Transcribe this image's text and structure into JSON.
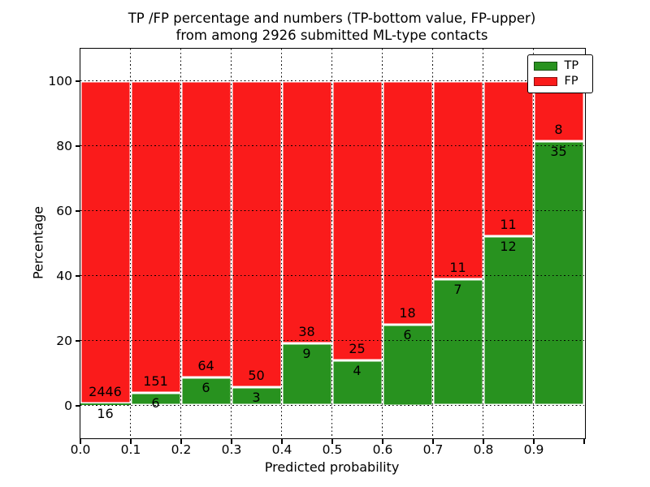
{
  "chart_data": {
    "type": "bar",
    "stacked": true,
    "title": "TP /FP percentage and numbers (TP-bottom value, FP-upper)",
    "subtitle": "from among 2926 submitted ML-type contacts",
    "xlabel": "Predicted probability",
    "ylabel": "Percentage",
    "total_contacts": 2926,
    "x_tick_labels": [
      "0.0",
      "0.1",
      "0.2",
      "0.3",
      "0.4",
      "0.5",
      "0.6",
      "0.7",
      "0.8",
      "0.9"
    ],
    "y_ticks": [
      0,
      20,
      40,
      60,
      80,
      100
    ],
    "y_tick_labels": [
      "0",
      "20",
      "40",
      "60",
      "80",
      "100"
    ],
    "xlim": [
      0.0,
      1.0
    ],
    "ylim": [
      -10,
      108.5
    ],
    "bin_width": 0.1,
    "grid": "dotted",
    "bar_normalization": "each bar stacked to 100%",
    "series": [
      {
        "name": "TP",
        "color": "#28921f",
        "position": "bottom",
        "counts": [
          16,
          6,
          6,
          3,
          9,
          4,
          6,
          7,
          12,
          35
        ],
        "pct_of_bin": [
          0.65,
          3.82,
          8.57,
          5.66,
          19.15,
          13.79,
          25.0,
          38.89,
          52.17,
          81.4
        ]
      },
      {
        "name": "FP",
        "color": "#fa1b1b",
        "position": "top",
        "counts": [
          2446,
          151,
          64,
          50,
          38,
          25,
          18,
          11,
          11,
          8
        ]
      }
    ],
    "legend": {
      "position": "upper right",
      "entries": [
        {
          "label": "TP",
          "color": "#28921f"
        },
        {
          "label": "FP",
          "color": "#fa1b1b"
        }
      ]
    }
  }
}
